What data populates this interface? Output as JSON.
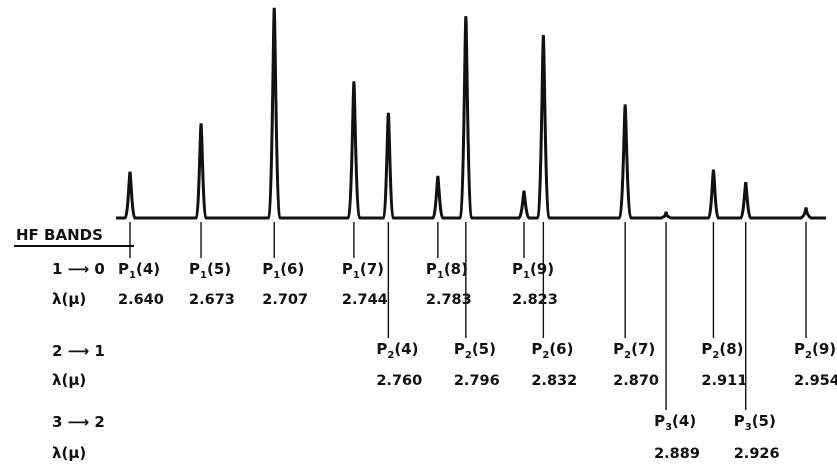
{
  "chart_data": {
    "type": "line",
    "title": "",
    "rows": [
      {
        "transition": "1 ⟶ 0",
        "wl_label": "λ(μ)"
      },
      {
        "transition": "2 ⟶ 1",
        "wl_label": "λ(μ)"
      },
      {
        "transition": "3 ⟶ 2",
        "wl_label": "λ(μ)"
      }
    ],
    "bands_label": "HF BANDS",
    "peaks": [
      {
        "branch": "P",
        "v": "1",
        "j": "(4)",
        "wavelength": "2.640",
        "height": 0.22,
        "row": 0
      },
      {
        "branch": "P",
        "v": "1",
        "j": "(5)",
        "wavelength": "2.673",
        "height": 0.45,
        "row": 0
      },
      {
        "branch": "P",
        "v": "1",
        "j": "(6)",
        "wavelength": "2.707",
        "height": 1.0,
        "row": 0
      },
      {
        "branch": "P",
        "v": "1",
        "j": "(7)",
        "wavelength": "2.744",
        "height": 0.65,
        "row": 0
      },
      {
        "branch": "P",
        "v": "2",
        "j": "(4)",
        "wavelength": "2.760",
        "height": 0.5,
        "row": 1
      },
      {
        "branch": "P",
        "v": "1",
        "j": "(8)",
        "wavelength": "2.783",
        "height": 0.2,
        "row": 0
      },
      {
        "branch": "P",
        "v": "2",
        "j": "(5)",
        "wavelength": "2.796",
        "height": 0.96,
        "row": 1
      },
      {
        "branch": "P",
        "v": "1",
        "j": "(9)",
        "wavelength": "2.823",
        "height": 0.13,
        "row": 0
      },
      {
        "branch": "P",
        "v": "2",
        "j": "(6)",
        "wavelength": "2.832",
        "height": 0.87,
        "row": 1
      },
      {
        "branch": "P",
        "v": "2",
        "j": "(7)",
        "wavelength": "2.870",
        "height": 0.54,
        "row": 1
      },
      {
        "branch": "P",
        "v": "3",
        "j": "(4)",
        "wavelength": "2.889",
        "height": 0.03,
        "row": 2
      },
      {
        "branch": "P",
        "v": "2",
        "j": "(8)",
        "wavelength": "2.911",
        "height": 0.23,
        "row": 1
      },
      {
        "branch": "P",
        "v": "3",
        "j": "(5)",
        "wavelength": "2.926",
        "height": 0.17,
        "row": 2
      },
      {
        "branch": "P",
        "v": "2",
        "j": "(9)",
        "wavelength": "2.954",
        "height": 0.05,
        "row": 1
      }
    ]
  }
}
